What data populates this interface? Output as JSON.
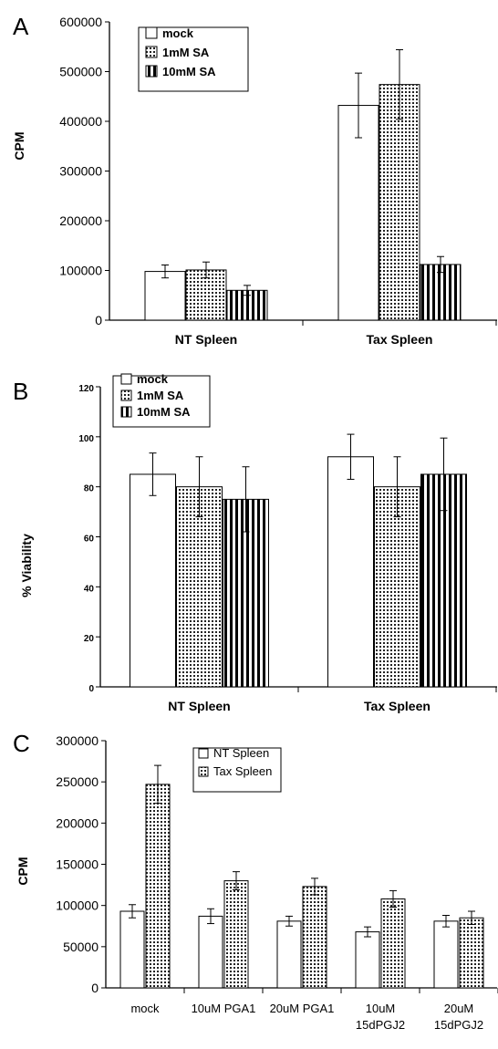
{
  "chart_data": [
    {
      "panel": "A",
      "type": "bar",
      "ylabel": "CPM",
      "ylim": [
        0,
        600000
      ],
      "yticks": [
        "0",
        "100000",
        "200000",
        "300000",
        "400000",
        "500000",
        "600000"
      ],
      "categories": [
        "NT Spleen",
        "Tax Spleen"
      ],
      "legend_position": "top-left",
      "series": [
        {
          "name": "mock",
          "pattern": "white",
          "values": [
            98000,
            432000
          ],
          "errors": [
            13000,
            65000
          ]
        },
        {
          "name": "1mM SA",
          "pattern": "dots",
          "values": [
            101000,
            474000
          ],
          "errors": [
            16000,
            70000
          ]
        },
        {
          "name": "10mM SA",
          "pattern": "vertical-stripes",
          "values": [
            60000,
            112000
          ],
          "errors": [
            10000,
            16000
          ]
        }
      ]
    },
    {
      "panel": "B",
      "type": "bar",
      "ylabel": "% Viability",
      "ylim": [
        0,
        120
      ],
      "yticks": [
        "0",
        "20",
        "40",
        "60",
        "80",
        "100",
        "120"
      ],
      "categories": [
        "NT Spleen",
        "Tax Spleen"
      ],
      "legend_position": "top-left",
      "series": [
        {
          "name": "mock",
          "pattern": "white",
          "values": [
            85,
            92
          ],
          "errors": [
            8.5,
            9
          ]
        },
        {
          "name": "1mM SA",
          "pattern": "dots",
          "values": [
            80,
            80
          ],
          "errors": [
            12,
            12
          ]
        },
        {
          "name": "10mM SA",
          "pattern": "vertical-stripes",
          "values": [
            75,
            85
          ],
          "errors": [
            13,
            14.5
          ]
        }
      ]
    },
    {
      "panel": "C",
      "type": "bar",
      "ylabel": "CPM",
      "ylim": [
        0,
        300000
      ],
      "yticks": [
        "0",
        "50000",
        "100000",
        "150000",
        "200000",
        "250000",
        "300000"
      ],
      "categories": [
        "mock",
        "10uM PGA1",
        "20uM PGA1",
        "10uM 15dPGJ2",
        "20uM 15dPGJ2"
      ],
      "legend_position": "top-center",
      "series": [
        {
          "name": "NT Spleen",
          "pattern": "white",
          "values": [
            93000,
            87000,
            81000,
            68000,
            81000
          ],
          "errors": [
            8000,
            9000,
            6000,
            6000,
            7000
          ]
        },
        {
          "name": "Tax Spleen",
          "pattern": "dots",
          "values": [
            247000,
            130000,
            123000,
            108000,
            85000
          ],
          "errors": [
            23000,
            11000,
            10000,
            10000,
            8000
          ]
        }
      ]
    }
  ]
}
